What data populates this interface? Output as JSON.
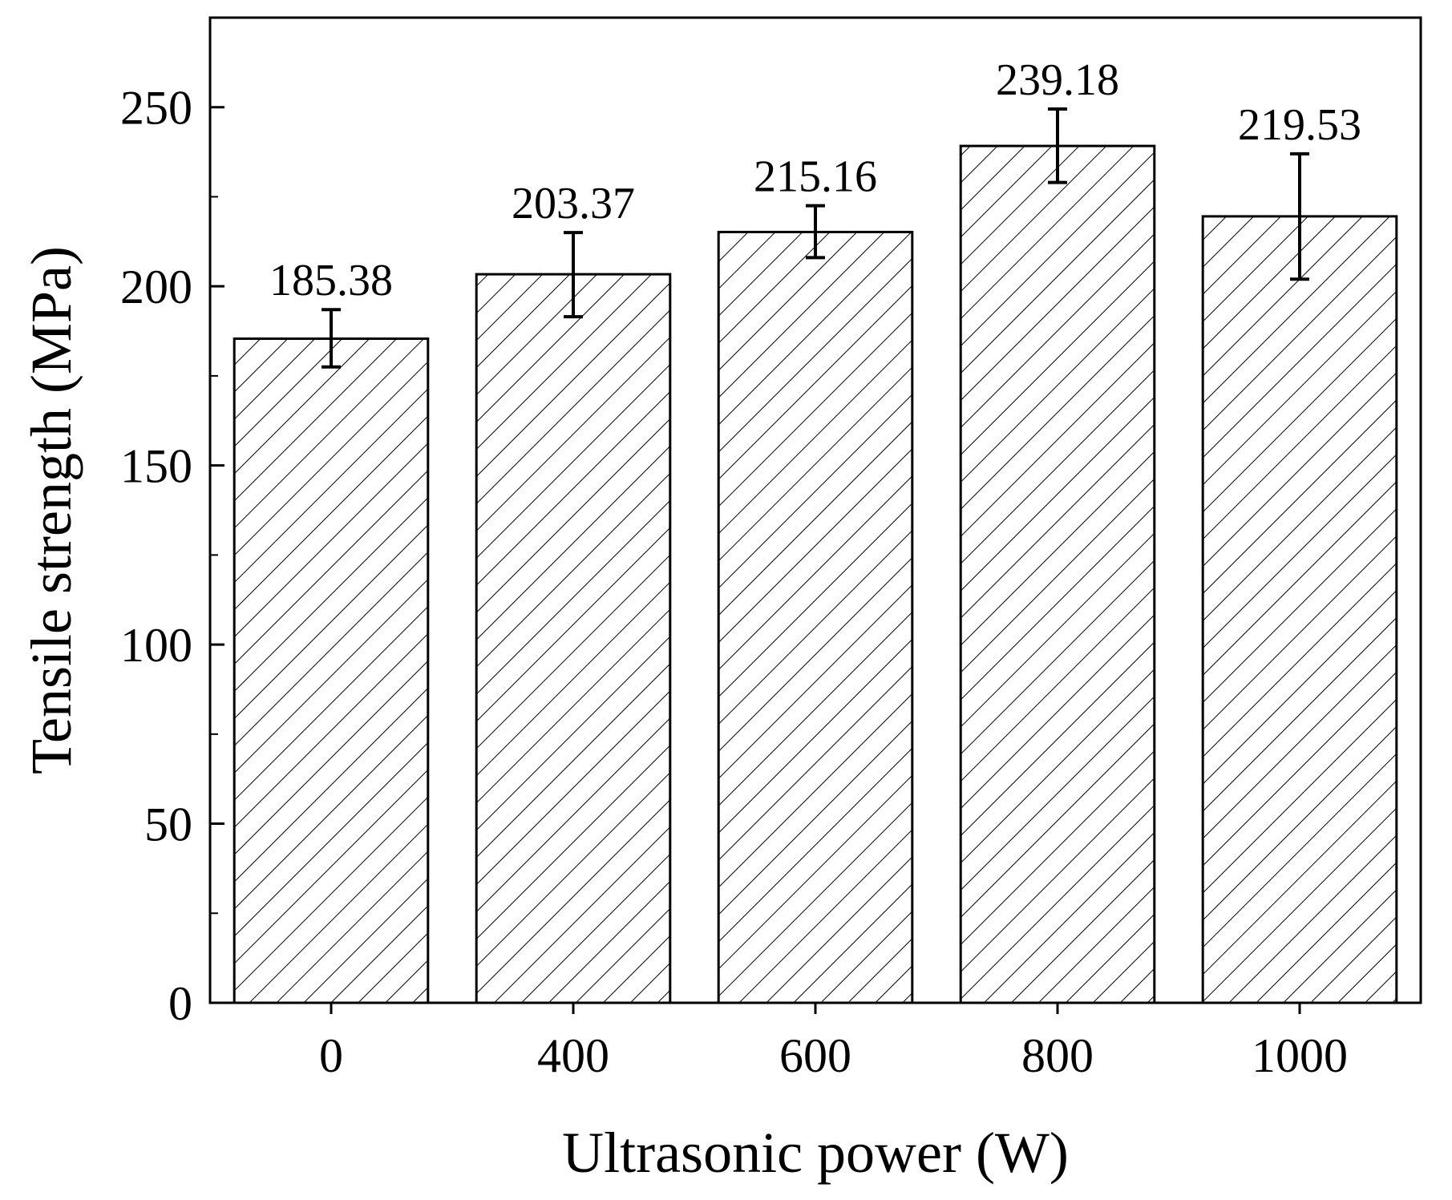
{
  "chart_data": {
    "type": "bar",
    "title": "",
    "xlabel": "Ultrasonic power (W)",
    "ylabel": "Tensile strength (MPa)",
    "categories": [
      "0",
      "400",
      "600",
      "800",
      "1000"
    ],
    "values": [
      185.38,
      203.37,
      215.16,
      239.18,
      219.53
    ],
    "value_labels": [
      "185.38",
      "203.37",
      "215.16",
      "239.18",
      "219.53"
    ],
    "error_low": [
      177.5,
      191.5,
      208.0,
      229.0,
      202.0
    ],
    "error_high": [
      193.5,
      215.0,
      222.5,
      249.5,
      237.0
    ],
    "ylim": [
      0,
      275
    ],
    "yticks": [
      0,
      50,
      100,
      150,
      200,
      250
    ],
    "ytick_labels": [
      "0",
      "50",
      "100",
      "150",
      "200",
      "250"
    ],
    "bar_fill": "hatched",
    "grid": false,
    "legend": "none",
    "colors": {
      "bar_stroke": "#000000",
      "hatch": "#000000",
      "background": "#ffffff"
    }
  }
}
